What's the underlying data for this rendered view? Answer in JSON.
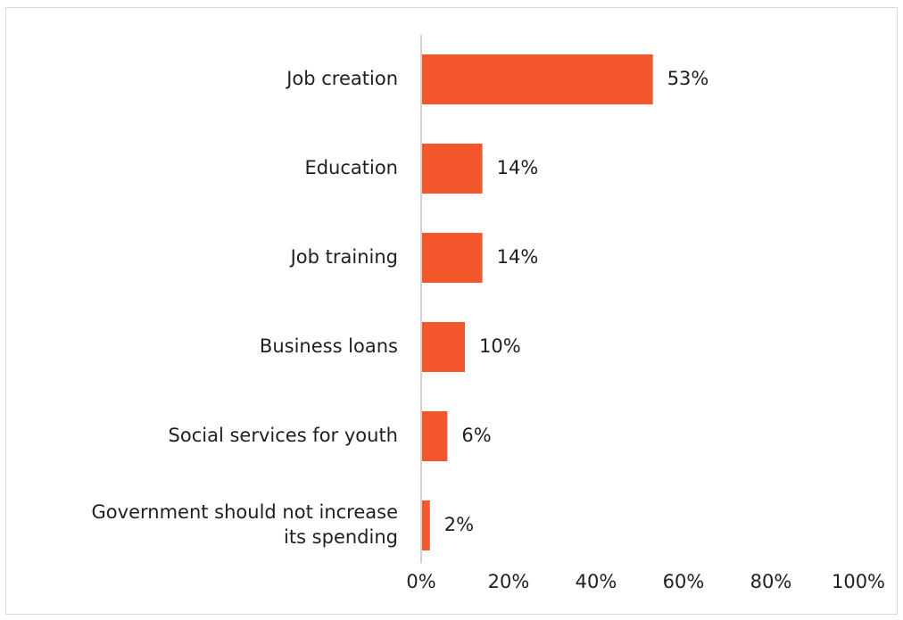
{
  "chart_data": {
    "type": "bar",
    "orientation": "horizontal",
    "categories": [
      "Job creation",
      "Education",
      "Job training",
      "Business loans",
      "Social services for youth",
      "Government should not increase its spending"
    ],
    "category_lines": [
      [
        "Job creation"
      ],
      [
        "Education"
      ],
      [
        "Job training"
      ],
      [
        "Business loans"
      ],
      [
        "Social services for youth"
      ],
      [
        "Government should not increase",
        "its spending"
      ]
    ],
    "values": [
      53,
      14,
      14,
      10,
      6,
      2
    ],
    "data_labels": [
      "53%",
      "14%",
      "14%",
      "10%",
      "6%",
      "2%"
    ],
    "xlim": [
      0,
      100
    ],
    "x_ticks": [
      0,
      20,
      40,
      60,
      80,
      100
    ],
    "x_tick_labels": [
      "0%",
      "20%",
      "40%",
      "60%",
      "80%",
      "100%"
    ],
    "grid": false,
    "colors": {
      "bar": "#F4572B"
    }
  }
}
